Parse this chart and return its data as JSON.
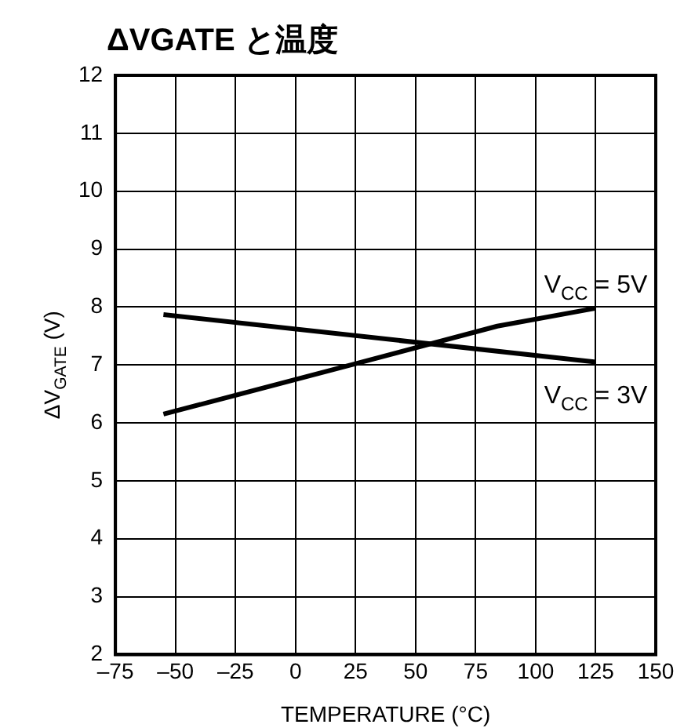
{
  "chart_data": {
    "type": "line",
    "title": "ΔVGATE と温度",
    "xlabel": "TEMPERATURE (°C)",
    "ylabel": "ΔV$_{GATE}$ (V)",
    "xlim": [
      -75,
      150
    ],
    "xticks": [
      {
        "value": -75,
        "label": "–75"
      },
      {
        "value": -50,
        "label": "–50"
      },
      {
        "value": -25,
        "label": "–25"
      },
      0,
      25,
      50,
      75,
      100,
      125,
      150
    ],
    "ylim": [
      2,
      12
    ],
    "yticks": [
      2,
      3,
      4,
      5,
      6,
      7,
      8,
      9,
      10,
      11,
      12
    ],
    "grid": true,
    "legend": false,
    "marker": "none",
    "line_style": "solid",
    "series": [
      {
        "name": "V$_{CC}$ = 5V",
        "color": "#000000",
        "x": [
          -55,
          25,
          84,
          125
        ],
        "values": [
          6.15,
          7.02,
          7.67,
          7.98
        ]
      },
      {
        "name": "V$_{CC}$ = 3V",
        "color": "#000000",
        "x": [
          -55,
          125
        ],
        "values": [
          7.87,
          7.05
        ]
      }
    ]
  }
}
